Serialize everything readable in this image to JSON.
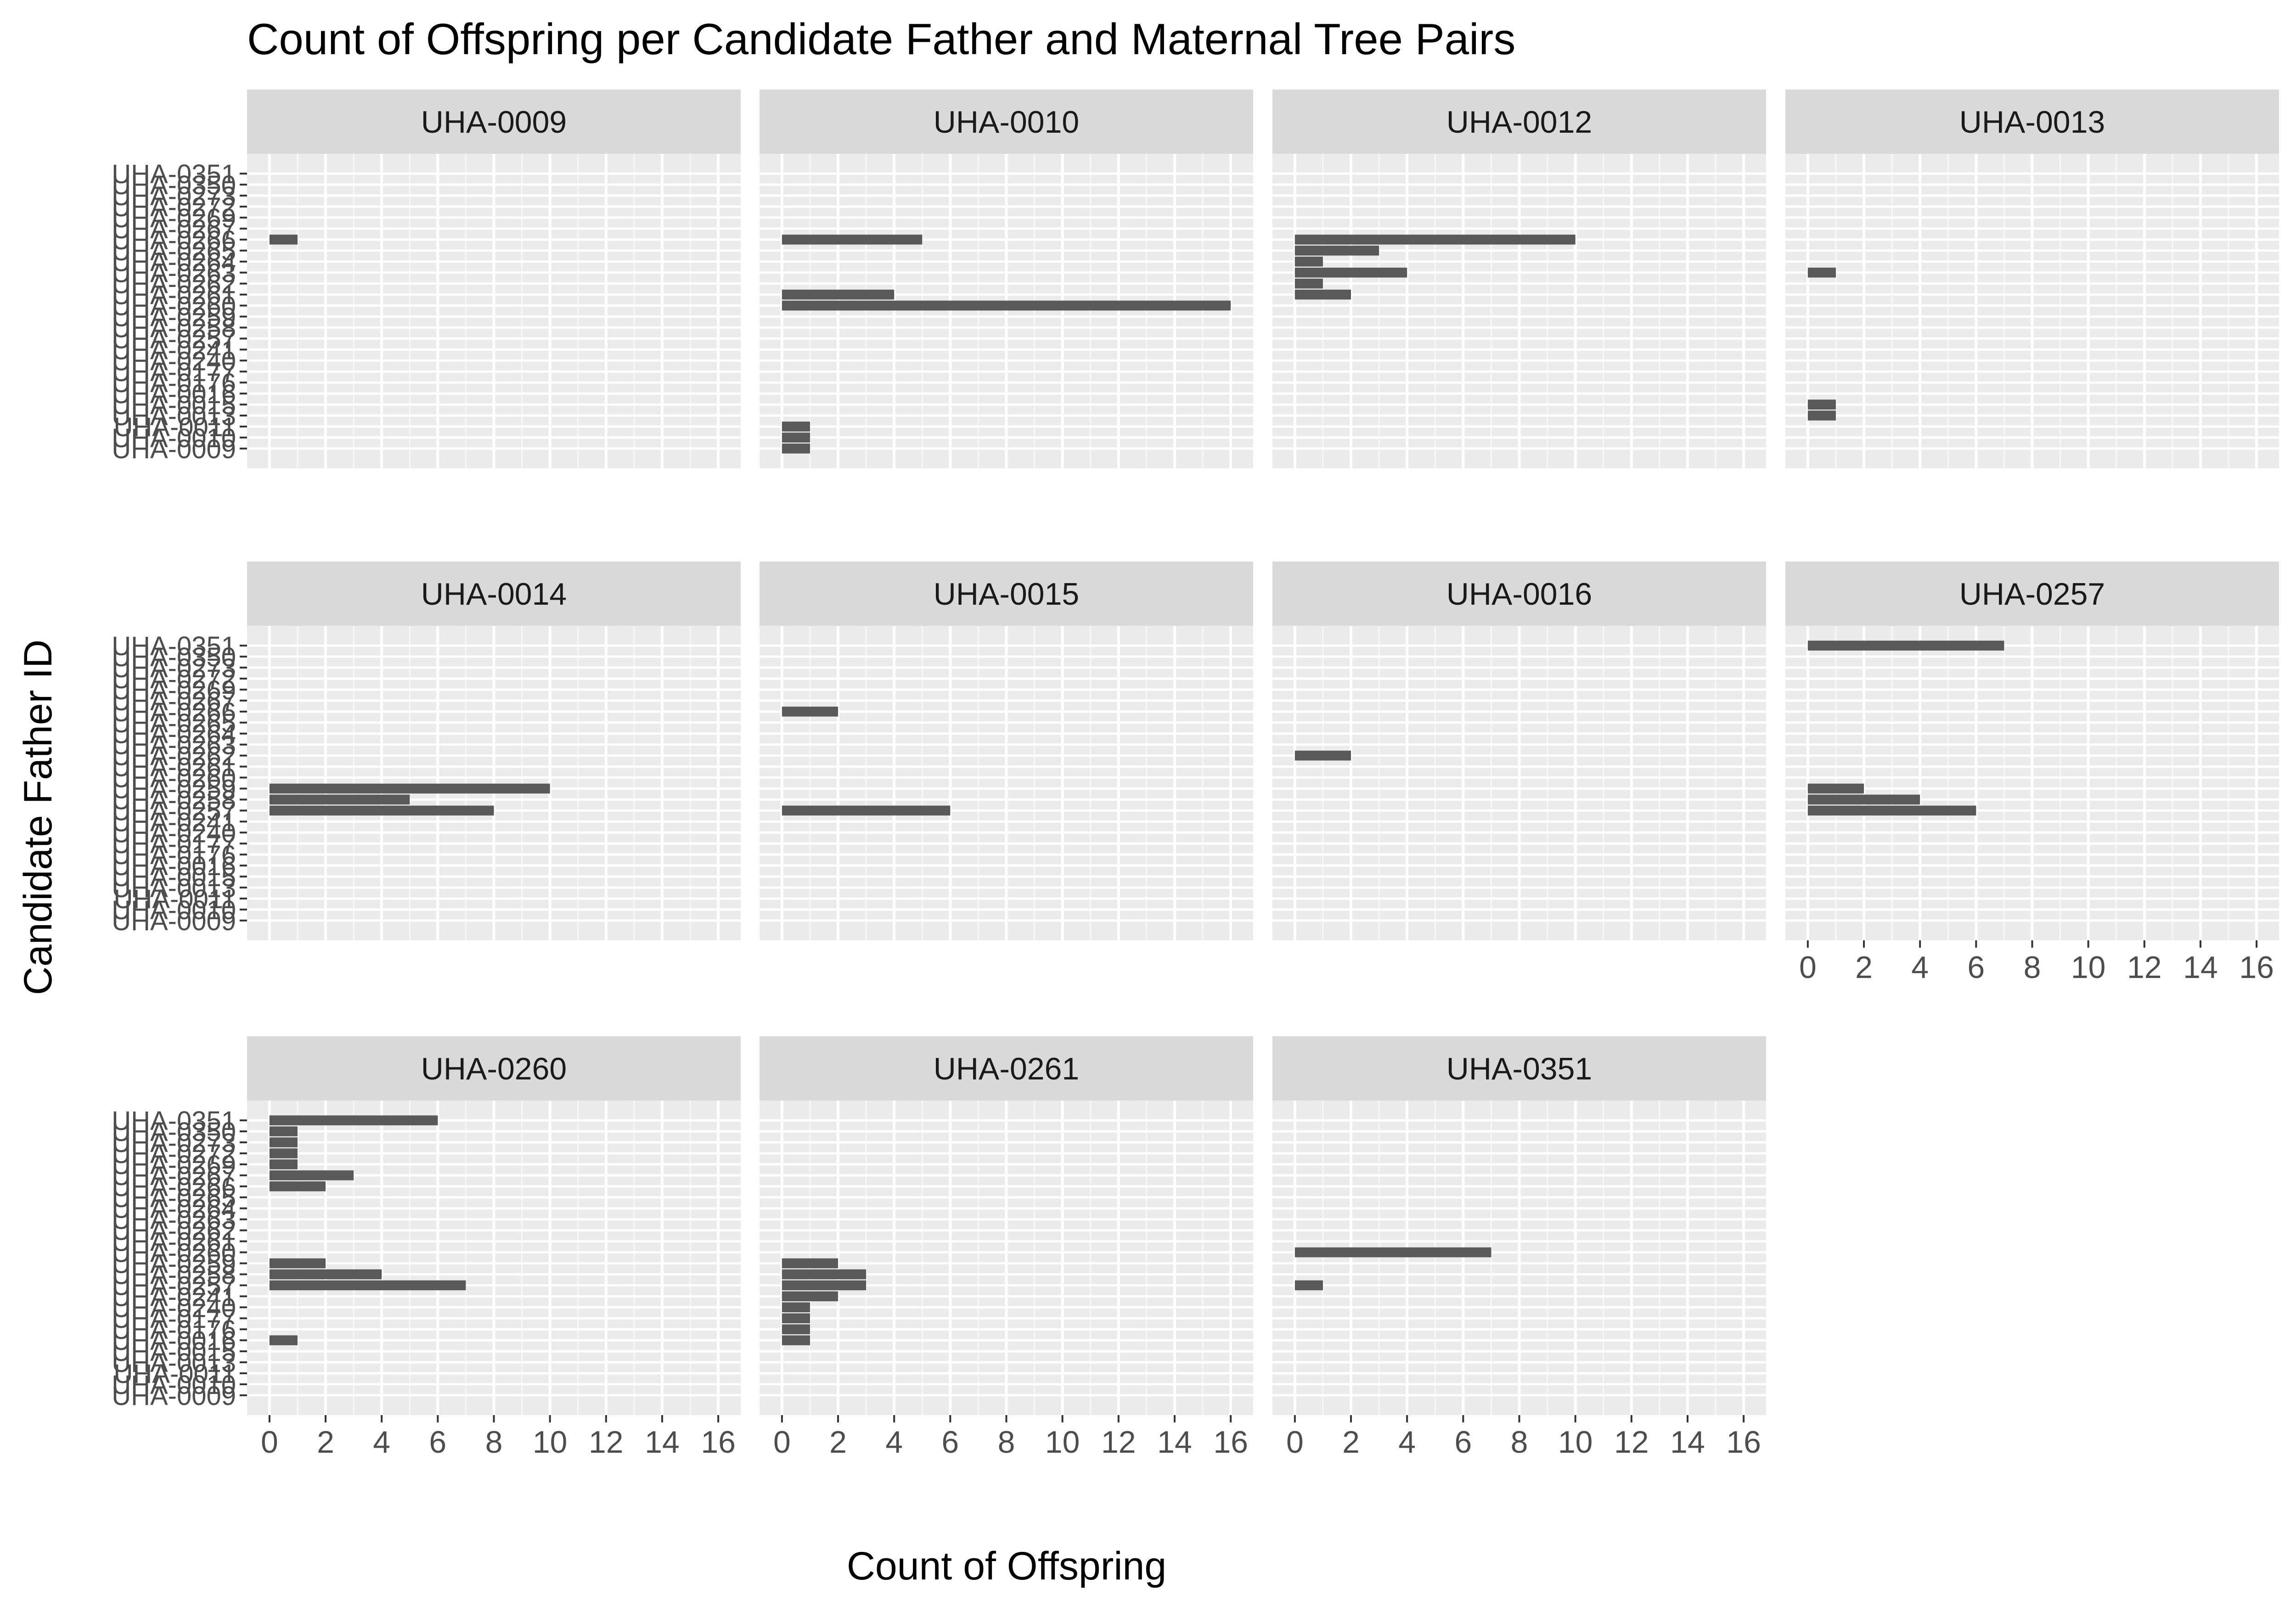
{
  "chart_data": {
    "type": "bar",
    "orientation": "horizontal",
    "title": "Count of Offspring per Candidate Father and Maternal Tree Pairs",
    "xlabel": "Count of Offspring",
    "ylabel": "Candidate Father ID",
    "xlim": [
      0,
      16
    ],
    "x_ticks": [
      "0",
      "2",
      "4",
      "6",
      "8",
      "10",
      "12",
      "14",
      "16"
    ],
    "grid": true,
    "facet_layout": "4 columns x 3 rows",
    "categories": [
      "UHA-0009",
      "UHA-0010",
      "UHA-0011",
      "UHA-0013",
      "UHA-0015",
      "UHA-0016",
      "UHA-0176",
      "UHA-0177",
      "UHA-0240",
      "UHA-0241",
      "UHA-0257",
      "UHA-0258",
      "UHA-0259",
      "UHA-0260",
      "UHA-0261",
      "UHA-0262",
      "UHA-0263",
      "UHA-0264",
      "UHA-0265",
      "UHA-0266",
      "UHA-0267",
      "UHA-0269",
      "UHA-0272",
      "UHA-0273",
      "UHA-0350",
      "UHA-0351"
    ],
    "panels": [
      {
        "name": "UHA-0009",
        "counts": {
          "UHA-0266": 1
        }
      },
      {
        "name": "UHA-0010",
        "counts": {
          "UHA-0266": 5,
          "UHA-0261": 4,
          "UHA-0260": 16,
          "UHA-0011": 1,
          "UHA-0010": 1,
          "UHA-0009": 1
        }
      },
      {
        "name": "UHA-0012",
        "counts": {
          "UHA-0266": 10,
          "UHA-0265": 3,
          "UHA-0264": 1,
          "UHA-0263": 4,
          "UHA-0262": 1,
          "UHA-0261": 2
        }
      },
      {
        "name": "UHA-0013",
        "counts": {
          "UHA-0263": 1,
          "UHA-0015": 1,
          "UHA-0013": 1
        }
      },
      {
        "name": "UHA-0014",
        "counts": {
          "UHA-0259": 10,
          "UHA-0258": 5,
          "UHA-0257": 8
        }
      },
      {
        "name": "UHA-0015",
        "counts": {
          "UHA-0266": 2,
          "UHA-0257": 6
        }
      },
      {
        "name": "UHA-0016",
        "counts": {
          "UHA-0262": 2
        }
      },
      {
        "name": "UHA-0257",
        "counts": {
          "UHA-0351": 7,
          "UHA-0259": 2,
          "UHA-0258": 4,
          "UHA-0257": 6
        }
      },
      {
        "name": "UHA-0260",
        "counts": {
          "UHA-0351": 6,
          "UHA-0350": 1,
          "UHA-0273": 1,
          "UHA-0272": 1,
          "UHA-0269": 1,
          "UHA-0267": 3,
          "UHA-0266": 2,
          "UHA-0259": 2,
          "UHA-0258": 4,
          "UHA-0257": 7,
          "UHA-0016": 1
        }
      },
      {
        "name": "UHA-0261",
        "counts": {
          "UHA-0259": 2,
          "UHA-0258": 3,
          "UHA-0257": 3,
          "UHA-0241": 2,
          "UHA-0240": 1,
          "UHA-0177": 1,
          "UHA-0176": 1,
          "UHA-0016": 1
        }
      },
      {
        "name": "UHA-0351",
        "counts": {
          "UHA-0260": 7,
          "UHA-0257": 1
        }
      }
    ],
    "colors": {
      "bar": "#595959",
      "panel_background": "#ebebeb",
      "grid_major": "#ffffff",
      "strip_background": "#d9d9d9",
      "tick_text": "#4d4d4d"
    }
  }
}
